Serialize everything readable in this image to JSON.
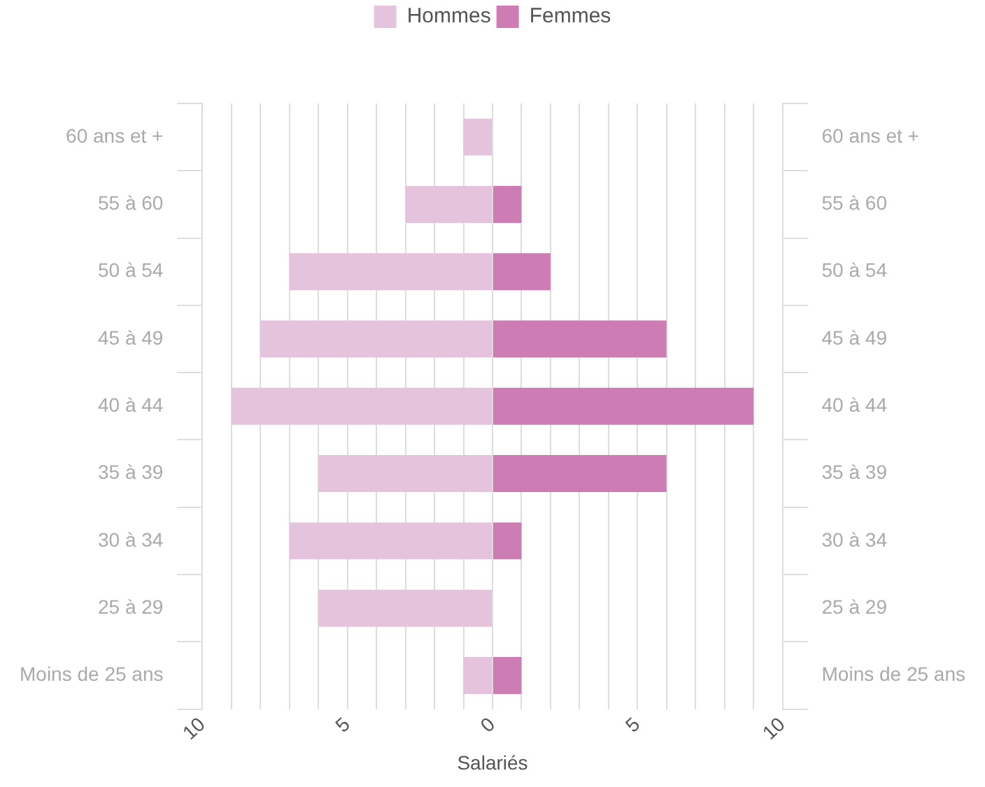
{
  "chart_data": {
    "type": "bar",
    "orientation": "horizontal",
    "stacked": true,
    "xlabel": "Salariés",
    "legend": "top",
    "categories": [
      "60 ans et +",
      "55 à 60",
      "50 à 54",
      "45 à 49",
      "40 à 44",
      "35 à 39",
      "30 à 34",
      "25 à 29",
      "Moins de 25 ans"
    ],
    "series": [
      {
        "name": "Hommes",
        "color": "#e5c3dd",
        "values": [
          -1,
          -3,
          -7,
          -8,
          -9,
          -6,
          -7,
          -6,
          -1
        ]
      },
      {
        "name": "Femmes",
        "color": "#cd7db3",
        "values": [
          0,
          1,
          2,
          6,
          9,
          6,
          1,
          0,
          1
        ]
      }
    ],
    "xlim": [
      -10,
      10
    ],
    "xticks": [
      {
        "value": -10,
        "label": "10"
      },
      {
        "value": -9,
        "label": null
      },
      {
        "value": -8,
        "label": null
      },
      {
        "value": -7,
        "label": null
      },
      {
        "value": -6,
        "label": null
      },
      {
        "value": -5,
        "label": "5"
      },
      {
        "value": -4,
        "label": null
      },
      {
        "value": -3,
        "label": null
      },
      {
        "value": -2,
        "label": null
      },
      {
        "value": -1,
        "label": null
      },
      0,
      {
        "value": 1,
        "label": null
      },
      {
        "value": 2,
        "label": null
      },
      {
        "value": 3,
        "label": null
      },
      {
        "value": 4,
        "label": null
      },
      {
        "value": 5,
        "label": "5"
      },
      {
        "value": 6,
        "label": null
      },
      {
        "value": 7,
        "label": null
      },
      {
        "value": 8,
        "label": null
      },
      {
        "value": 9,
        "label": null
      },
      {
        "value": 10,
        "label": "10"
      }
    ],
    "grid": "x"
  }
}
